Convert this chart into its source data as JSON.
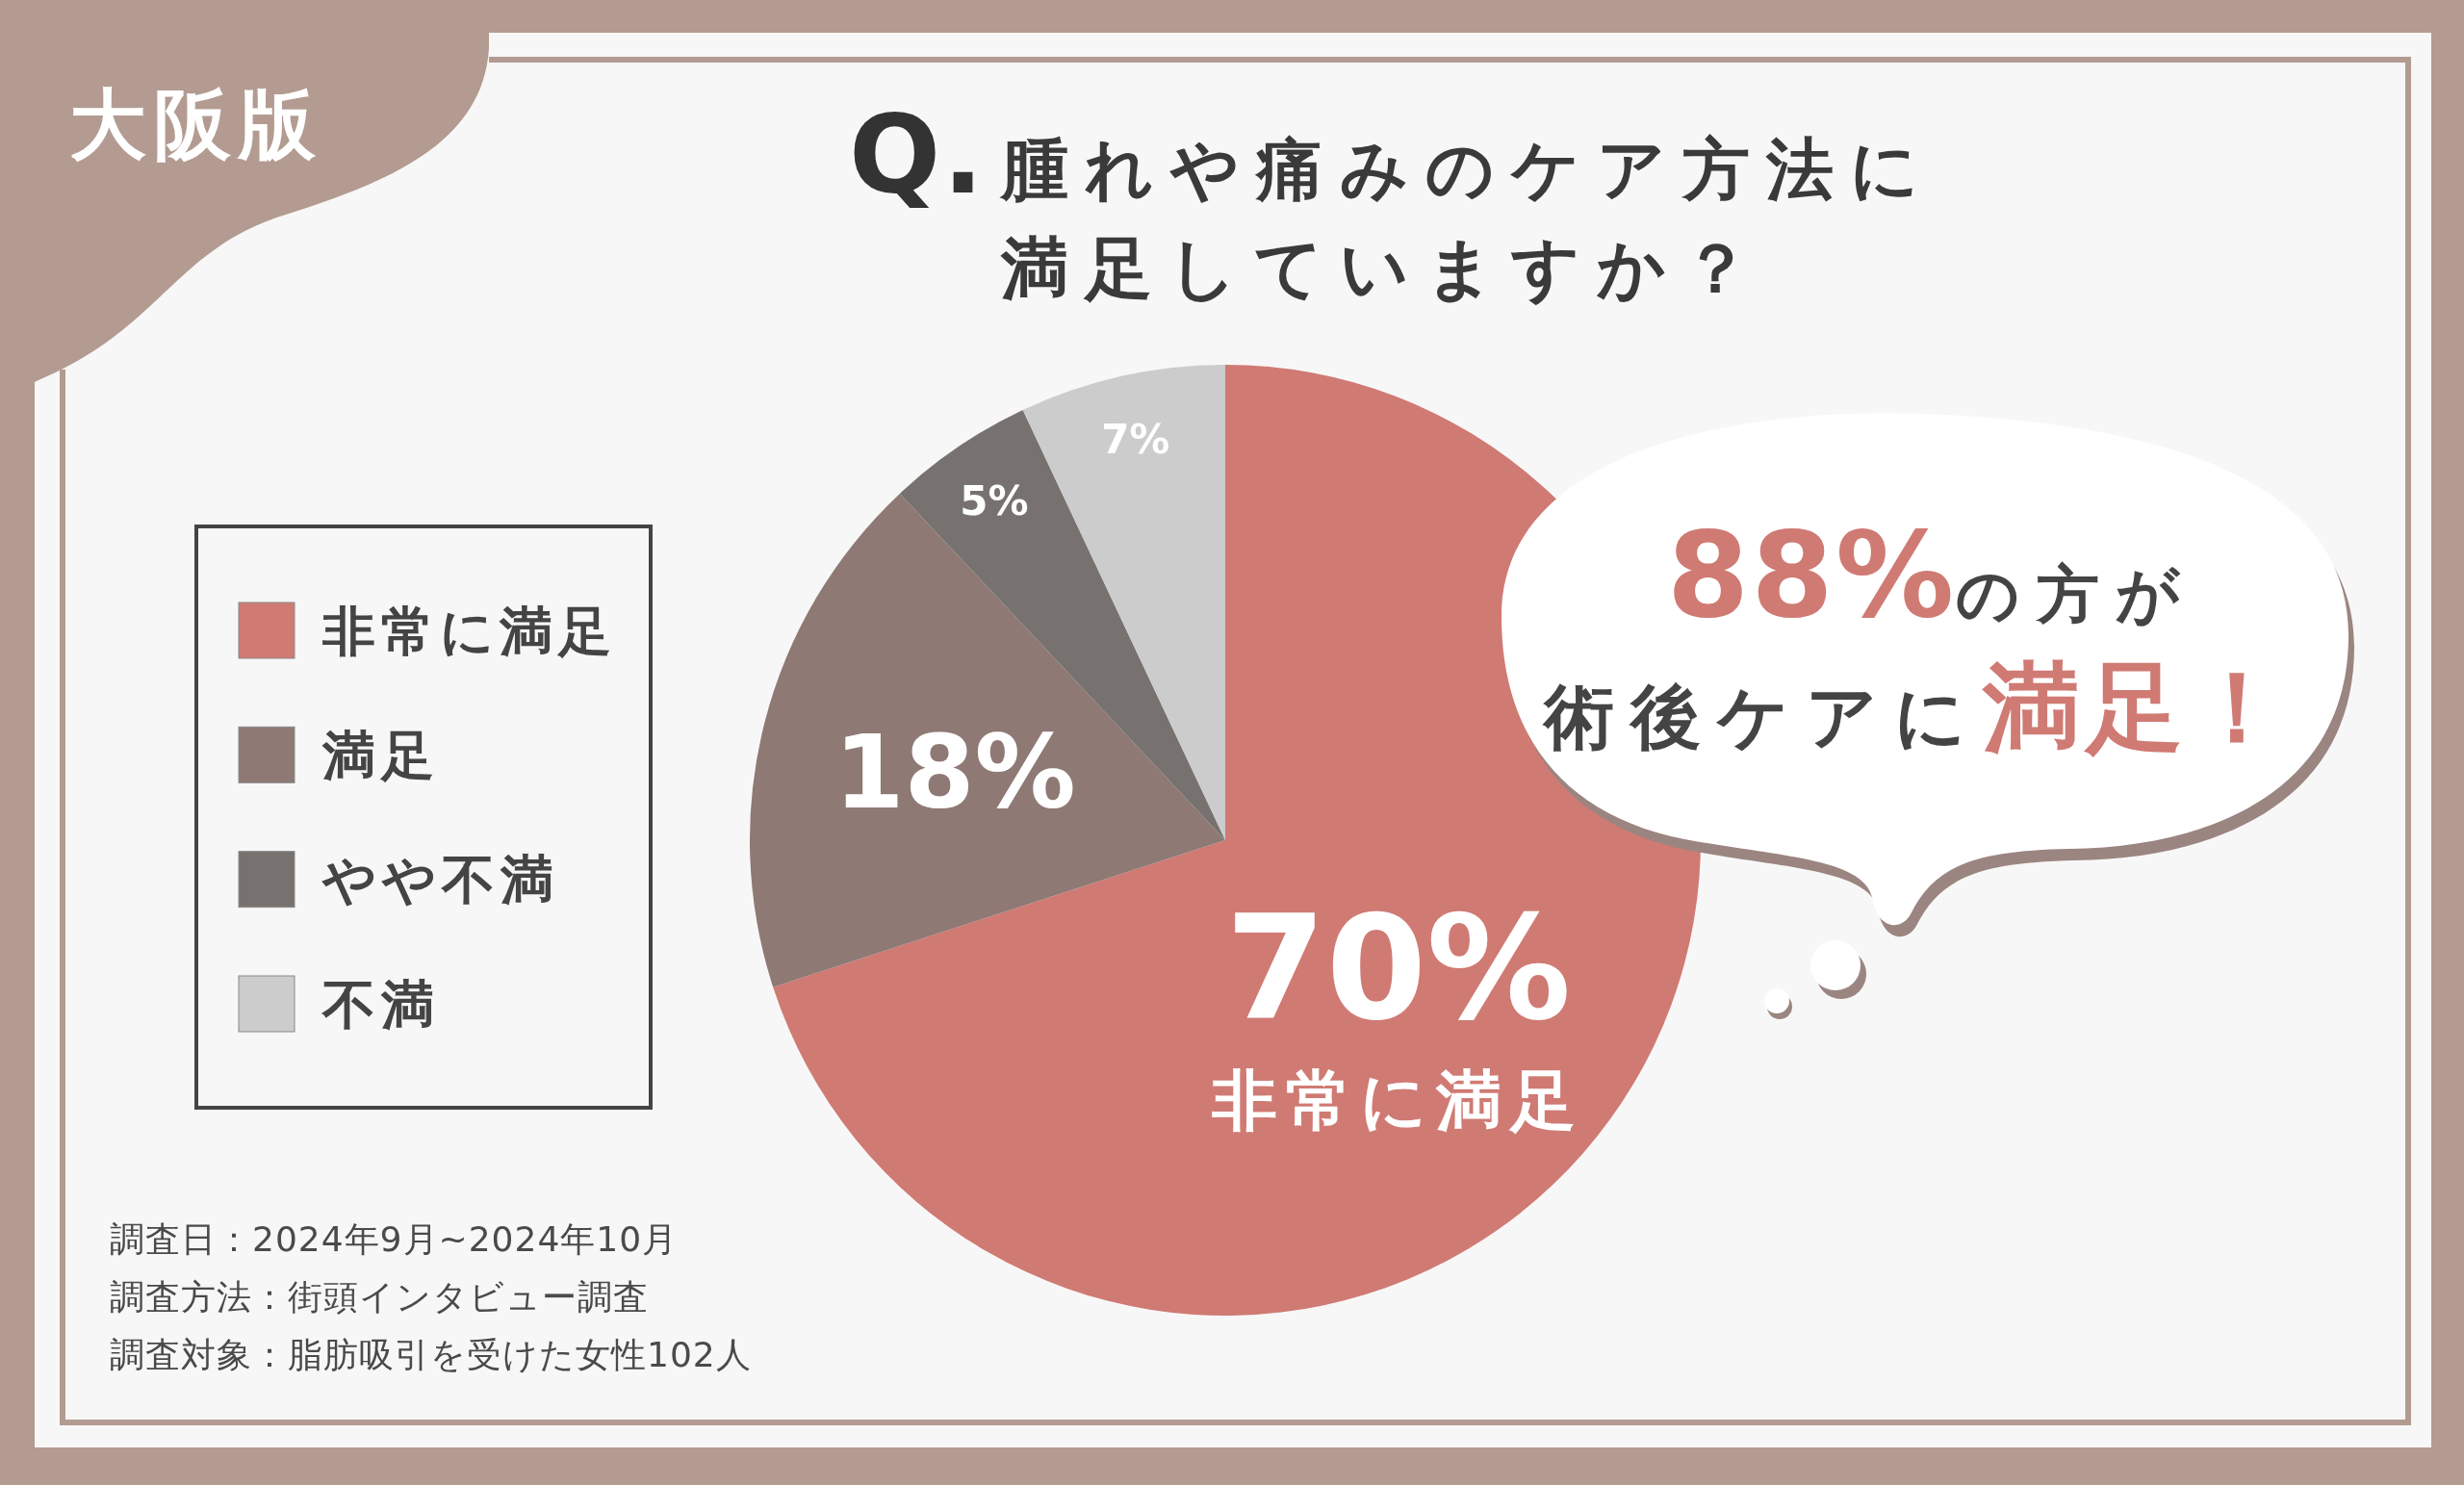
{
  "chart_data": {
    "type": "pie",
    "title": "**Q.**腫れや痛みのケア方法に満足していますか？",
    "subtitle": "大阪版",
    "categories": [
      "非常に満足",
      "満足",
      "やや不満",
      "不満"
    ],
    "values": [
      70,
      18,
      5,
      7
    ],
    "colors": [
      "#d07a74",
      "#8e7974",
      "#777270",
      "#cccccc"
    ],
    "value_labels": [
      "70%",
      "18%",
      "5%",
      "7%"
    ],
    "legend": "left",
    "annotations": [
      "**88%**の方が",
      "術後ケアに**満足！**",
      "調査日：2024年9月~2024年10月",
      "調査方法：街頭インタビュー調査",
      "調査対象：脂肪吸引を受けた女性102人"
    ]
  }
}
